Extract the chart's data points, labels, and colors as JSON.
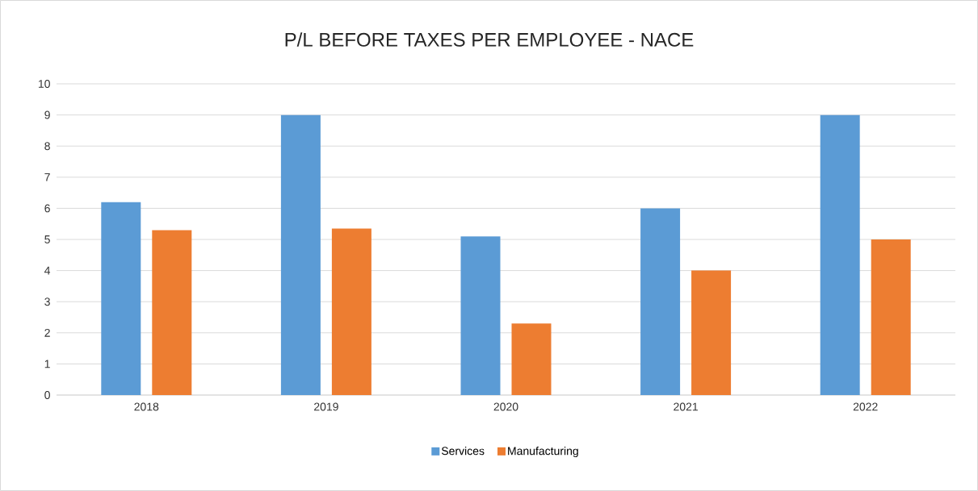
{
  "chart_data": {
    "type": "bar",
    "title": "P/L BEFORE TAXES PER EMPLOYEE - NACE",
    "categories": [
      "2018",
      "2019",
      "2020",
      "2021",
      "2022"
    ],
    "series": [
      {
        "name": "Services",
        "color": "#5b9bd5",
        "values": [
          6.2,
          9,
          5.1,
          6,
          9
        ]
      },
      {
        "name": "Manufacturing",
        "color": "#ed7d31",
        "values": [
          5.3,
          5.35,
          2.3,
          4,
          5
        ]
      }
    ],
    "ylim": [
      0,
      10
    ],
    "yticks": [
      0,
      1,
      2,
      3,
      4,
      5,
      6,
      7,
      8,
      9,
      10
    ],
    "grid": "y",
    "legend": "bottom"
  }
}
